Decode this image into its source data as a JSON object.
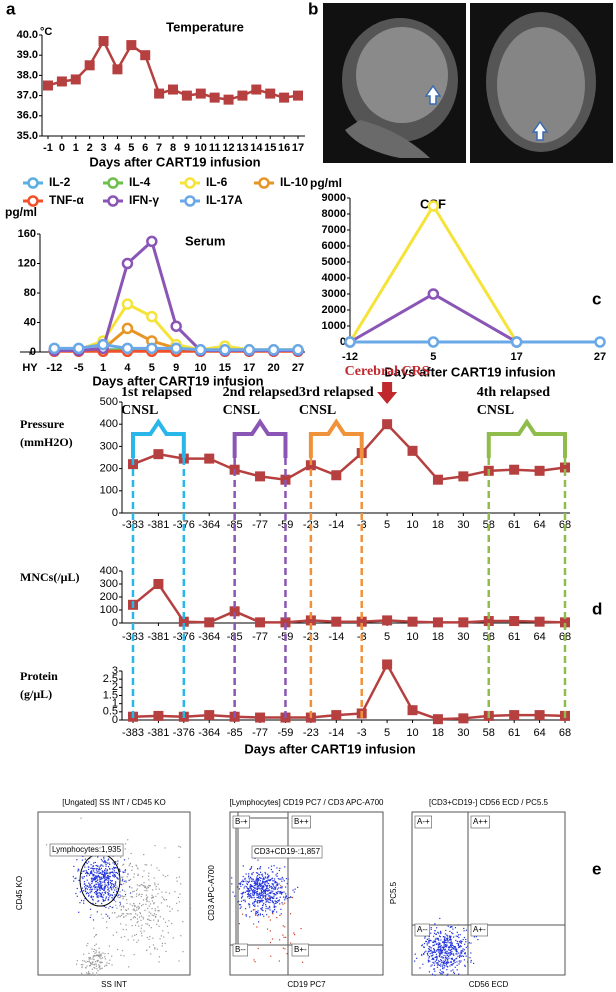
{
  "panel_labels": [
    "a",
    "b",
    "c",
    "d",
    "e"
  ],
  "chart_data": [
    {
      "type": "line",
      "title": "Temperature",
      "xlabel": "Days after CART19 infusion",
      "y_unit": "°C",
      "categories": [
        -1,
        0,
        1,
        2,
        3,
        4,
        5,
        6,
        7,
        8,
        9,
        10,
        11,
        12,
        13,
        14,
        15,
        16,
        17
      ],
      "marker": "square",
      "series": [
        {
          "color": "#b5403f",
          "values": [
            37.5,
            37.7,
            37.8,
            38.5,
            39.7,
            38.3,
            39.5,
            39.0,
            37.1,
            37.3,
            37.0,
            37.1,
            36.9,
            36.8,
            37.0,
            37.3,
            37.1,
            36.9,
            37.0
          ]
        }
      ],
      "ylim": [
        35,
        40
      ],
      "yticks": [
        {
          "value": 35,
          "label": "35.0"
        },
        {
          "value": 36,
          "label": "36.0"
        },
        {
          "value": 37,
          "label": "37.0"
        },
        {
          "value": 38,
          "label": "38.0"
        },
        {
          "value": 39,
          "label": "39.0"
        },
        {
          "value": 40,
          "label": "40.0"
        }
      ]
    },
    {
      "type": "line",
      "title": "Serum",
      "ylabel": "pg/ml",
      "xlabel": "Days after CART19 infusion",
      "categories": [
        "HY",
        "-12",
        "-5",
        "1",
        "4",
        "5",
        "9",
        "10",
        "15",
        "17",
        "20",
        "27"
      ],
      "marker": "circle",
      "series": [
        {
          "name": "IL-2",
          "color": "#5aaee0",
          "values": [
            null,
            2,
            2,
            3,
            3,
            3,
            2,
            2,
            2,
            2,
            2,
            2
          ]
        },
        {
          "name": "IL-4",
          "color": "#6cbf4a",
          "values": [
            null,
            2,
            2,
            2,
            3,
            3,
            2,
            2,
            2,
            2,
            2,
            2
          ]
        },
        {
          "name": "IL-6",
          "color": "#f5e33a",
          "values": [
            null,
            3,
            3,
            15,
            65,
            48,
            10,
            3,
            8,
            3,
            3,
            3
          ]
        },
        {
          "name": "IL-10",
          "color": "#e69526",
          "values": [
            null,
            2,
            2,
            4,
            32,
            15,
            5,
            2,
            2,
            2,
            2,
            2
          ]
        },
        {
          "name": "TNF-α",
          "color": "#f0512a",
          "values": [
            null,
            1,
            1,
            1,
            1,
            1,
            1,
            1,
            1,
            1,
            1,
            1
          ]
        },
        {
          "name": "IFN-γ",
          "color": "#8a55b5",
          "values": [
            null,
            2,
            2,
            5,
            120,
            150,
            35,
            2,
            2,
            2,
            2,
            2
          ]
        },
        {
          "name": "IL-17A",
          "color": "#6aa8e8",
          "values": [
            null,
            5,
            5,
            10,
            5,
            5,
            5,
            3,
            3,
            3,
            3,
            3
          ]
        }
      ],
      "ylim": [
        0,
        160
      ],
      "yticks": [
        0,
        40,
        80,
        120,
        160
      ]
    },
    {
      "type": "line",
      "title": "CSF",
      "ylabel": "pg/ml",
      "xlabel": "Days after CART19 infusion",
      "categories": [
        "-12",
        "5",
        "17",
        "27"
      ],
      "marker": "circle",
      "series": [
        {
          "color": "#f5e33a",
          "values": [
            0,
            8500,
            0,
            null
          ]
        },
        {
          "color": "#8a55b5",
          "values": [
            0,
            3000,
            0,
            null
          ]
        },
        {
          "color": "#6aa8e8",
          "values": [
            0,
            0,
            0,
            0
          ]
        }
      ],
      "ylim": [
        0,
        9000
      ],
      "yticks": [
        0,
        1000,
        2000,
        3000,
        4000,
        5000,
        6000,
        7000,
        8000,
        9000
      ]
    },
    {
      "type": "line",
      "ylabel": [
        "Pressure",
        "(mmH2O)"
      ],
      "categories": [
        -383,
        -381,
        -376,
        -364,
        -85,
        -77,
        -59,
        -23,
        -14,
        -3,
        5,
        10,
        18,
        30,
        58,
        61,
        64,
        68
      ],
      "marker": "square",
      "series": [
        {
          "color": "#b5403f",
          "values": [
            220,
            265,
            245,
            245,
            195,
            165,
            150,
            215,
            170,
            270,
            400,
            280,
            150,
            165,
            190,
            195,
            190,
            205
          ]
        }
      ],
      "ylim": [
        0,
        500
      ],
      "yticks": [
        0,
        100,
        200,
        300,
        400,
        500
      ],
      "episodes": [
        {
          "label": [
            "1st relapsed",
            "CNSL"
          ],
          "color": "#29b6e8",
          "from": -383,
          "to": -376
        },
        {
          "label": [
            "2nd relapsed",
            "CNSL"
          ],
          "color": "#8a55b5",
          "from": -85,
          "to": -59
        },
        {
          "label": [
            "3rd relapsed",
            "CNSL"
          ],
          "color": "#f0923a",
          "from": -23,
          "to": -3
        },
        {
          "label": [
            "4th relapsed",
            "CNSL"
          ],
          "color": "#8fbc4a",
          "from": 58,
          "to": 68
        }
      ],
      "event": {
        "label": "Cerebral CRS",
        "day": 5,
        "color": "#c0282d"
      }
    },
    {
      "type": "line",
      "ylabel": "MNCs(/μL)",
      "categories": [
        -383,
        -381,
        -376,
        -364,
        -85,
        -77,
        -59,
        -23,
        -14,
        -3,
        5,
        10,
        18,
        30,
        58,
        61,
        64,
        68
      ],
      "marker": "square",
      "series": [
        {
          "color": "#b5403f",
          "values": [
            140,
            300,
            10,
            5,
            90,
            5,
            5,
            20,
            10,
            10,
            20,
            10,
            5,
            5,
            15,
            15,
            10,
            5
          ]
        }
      ],
      "ylim": [
        0,
        400
      ],
      "yticks": [
        0,
        100,
        200,
        300,
        400
      ]
    },
    {
      "type": "line",
      "ylabel": [
        "Protein",
        "(g/μL)"
      ],
      "xlabel": "Days after CART19 infusion",
      "categories": [
        -383,
        -381,
        -376,
        -364,
        -85,
        -77,
        -59,
        -23,
        -14,
        -3,
        5,
        10,
        18,
        30,
        58,
        61,
        64,
        68
      ],
      "marker": "square",
      "series": [
        {
          "color": "#b5403f",
          "values": [
            0.2,
            0.25,
            0.2,
            0.3,
            0.2,
            0.15,
            0.15,
            0.15,
            0.3,
            0.4,
            3.4,
            0.6,
            0.05,
            0.1,
            0.25,
            0.3,
            0.3,
            0.25
          ]
        }
      ],
      "ylim": [
        0,
        3
      ],
      "yticks": [
        0,
        0.5,
        1,
        1.5,
        2,
        2.5,
        3
      ]
    }
  ],
  "flow_cytometry": [
    {
      "title": "[Ungated] SS INT / CD45 KO",
      "xlabel": "SS INT",
      "ylabel": "CD45 KO",
      "gate_labels": [
        "Lymphocytes:1,935"
      ]
    },
    {
      "title": "[Lymphocytes] CD19 PC7 / CD3 APC-A700",
      "xlabel": "CD19 PC7",
      "ylabel": "CD3 APC-A700",
      "gate_labels": [
        "CD3+CD19-:1,857",
        "B-+",
        "B++",
        "B--",
        "B+-"
      ]
    },
    {
      "title": "[CD3+CD19-] CD56 ECD / PC5.5",
      "xlabel": "CD56 ECD",
      "ylabel": "PC5.5",
      "gate_labels": [
        "A-+",
        "A++",
        "A--",
        "A+-"
      ]
    }
  ]
}
